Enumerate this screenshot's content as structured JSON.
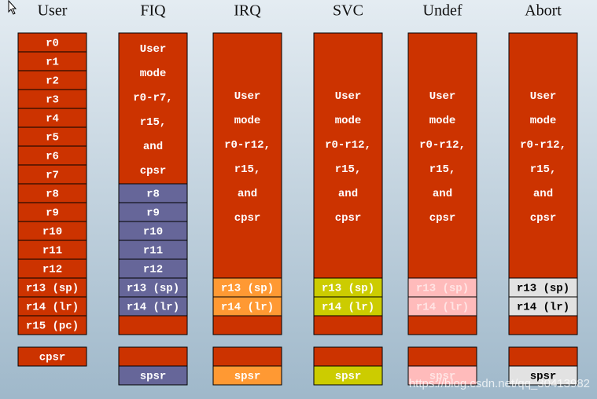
{
  "columns": [
    {
      "mode": "User",
      "registers": [
        "r0",
        "r1",
        "r2",
        "r3",
        "r4",
        "r5",
        "r6",
        "r7",
        "r8",
        "r9",
        "r10",
        "r11",
        "r12",
        "r13 (sp)",
        "r14 (lr)",
        "r15 (pc)"
      ],
      "status": "cpsr"
    },
    {
      "mode": "FIQ",
      "shared": [
        "User",
        "mode",
        "r0-r7,",
        "r15,",
        "and",
        "cpsr"
      ],
      "registers": [
        "r8",
        "r9",
        "r10",
        "r11",
        "r12",
        "r13 (sp)",
        "r14 (lr)"
      ],
      "status": "spsr"
    },
    {
      "mode": "IRQ",
      "shared": [
        "User",
        "mode",
        "r0-r12,",
        "r15,",
        "and",
        "cpsr"
      ],
      "registers": [
        "r13 (sp)",
        "r14 (lr)"
      ],
      "status": "spsr"
    },
    {
      "mode": "SVC",
      "shared": [
        "User",
        "mode",
        "r0-r12,",
        "r15,",
        "and",
        "cpsr"
      ],
      "registers": [
        "r13 (sp)",
        "r14 (lr)"
      ],
      "status": "spsr"
    },
    {
      "mode": "Undef",
      "shared": [
        "User",
        "mode",
        "r0-r12,",
        "r15,",
        "and",
        "cpsr"
      ],
      "registers": [
        "r13 (sp)",
        "r14 (lr)"
      ],
      "status": "spsr"
    },
    {
      "mode": "Abort",
      "shared": [
        "User",
        "mode",
        "r0-r12,",
        "r15,",
        "and",
        "cpsr"
      ],
      "registers": [
        "r13 (sp)",
        "r14 (lr)"
      ],
      "status": "spsr"
    }
  ],
  "watermark": "https://blog.csdn.net/qq_30413982"
}
